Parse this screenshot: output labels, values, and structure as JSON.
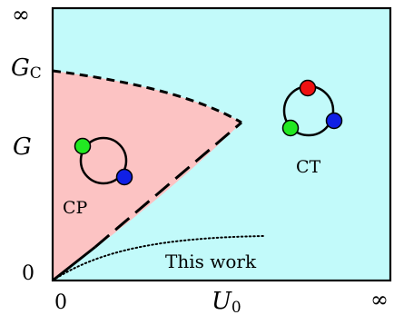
{
  "colors": {
    "ct_region": "#c2fafa",
    "cp_region": "#fcc3c3",
    "frame": "#000000",
    "dot_green": "#22e822",
    "dot_blue": "#1020e6",
    "dot_red": "#ee1111"
  },
  "axes": {
    "y_inf": "∞",
    "y_gc_main": "G",
    "y_gc_sub": "C",
    "y_g": "G",
    "y_zero": "0",
    "x_zero": "0",
    "x_u_main": "U",
    "x_u_sub": "0",
    "x_inf": "∞"
  },
  "regions": {
    "cp_label": "CP",
    "ct_label": "CT",
    "this_work_label": "This work"
  },
  "icons": {
    "cp_ring": "two-dot-ring-icon",
    "ct_ring": "three-dot-ring-icon"
  }
}
